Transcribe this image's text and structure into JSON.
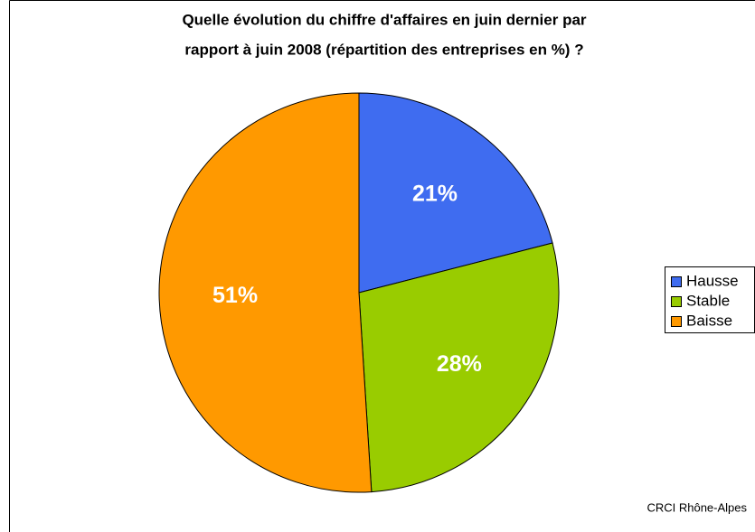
{
  "chart_data": {
    "type": "pie",
    "title": [
      "Quelle évolution du chiffre d'affaires en juin dernier par",
      "rapport à juin 2008 (répartition des entreprises en %) ?"
    ],
    "categories": [
      "Hausse",
      "Stable",
      "Baisse"
    ],
    "values": [
      21,
      28,
      51
    ],
    "value_labels": [
      "21%",
      "28%",
      "51%"
    ],
    "colors": [
      "#3f6cf0",
      "#99cc00",
      "#ff9900"
    ],
    "legend": "right",
    "source": "CRCI Rhône-Alpes"
  }
}
